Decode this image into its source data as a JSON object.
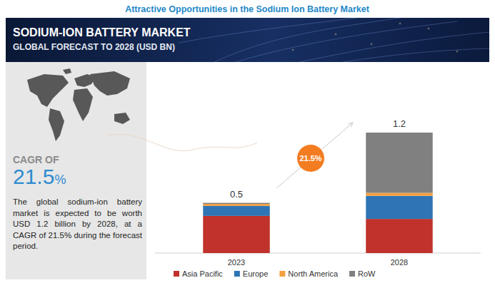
{
  "header": {
    "title": "Attractive Opportunities in the Sodium Ion Battery Market",
    "banner_title": "SODIUM-ION BATTERY MARKET",
    "banner_subtitle": "GLOBAL FORECAST TO 2028 (USD BN)"
  },
  "sidebar": {
    "cagr_label": "CAGR OF",
    "cagr": "21.5%",
    "text": "The global sodium-ion battery market is expected to be worth USD 1.2 billion by 2028, at a CAGR of 21.5% during the forecast period."
  },
  "chart_data": {
    "type": "bar",
    "stacked": true,
    "categories": [
      "2023",
      "2028"
    ],
    "series": [
      {
        "name": "Asia Pacific",
        "color": "#c0322b",
        "values": [
          0.37,
          0.34
        ]
      },
      {
        "name": "Europe",
        "color": "#2f75b5",
        "values": [
          0.1,
          0.23
        ]
      },
      {
        "name": "North America",
        "color": "#f4a040",
        "values": [
          0.02,
          0.03
        ]
      },
      {
        "name": "RoW",
        "color": "#808080",
        "values": [
          0.01,
          0.6
        ]
      }
    ],
    "totals": [
      0.5,
      1.2
    ],
    "annotation": "21.5%",
    "ylim": [
      0,
      1.2
    ],
    "tick_labels": "x",
    "legend": "bottom"
  }
}
